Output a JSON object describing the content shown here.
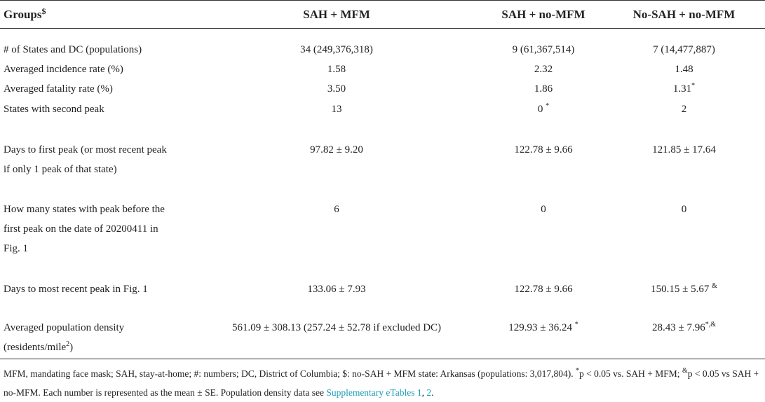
{
  "table": {
    "header": [
      {
        "text": "Groups",
        "sup": "$"
      },
      "SAH + MFM",
      "SAH + no-MFM",
      "No-SAH + no-MFM"
    ],
    "rows": [
      [
        "# of States and DC (populations)",
        "34 (249,376,318)",
        "9 (61,367,514)",
        "7 (14,477,887)"
      ],
      [
        "Averaged incidence rate (%)",
        "1.58",
        "2.32",
        "1.48"
      ],
      [
        "Averaged fatality rate (%)",
        "3.50",
        "1.86",
        {
          "text": "1.31",
          "sup": "*"
        }
      ],
      [
        "States with second peak",
        "13",
        {
          "text": "0 ",
          "sup": "*"
        },
        "2"
      ],
      [
        "Days to first peak (or most recent peak if only 1 peak of that state)",
        "97.82 ± 9.20",
        "122.78 ± 9.66",
        "121.85 ± 17.64"
      ],
      [
        "How many states with peak before the first peak on the date of 20200411 in Fig. 1",
        "6",
        "0",
        "0"
      ],
      [
        "Days to most recent peak in Fig. 1",
        "133.06 ± 7.93",
        "122.78 ± 9.66",
        {
          "text": "150.15 ± 5.67 ",
          "sup": "&"
        }
      ],
      [
        {
          "text": "Averaged population density (residents/mile",
          "sup": "2",
          "tail": ")"
        },
        "561.09 ± 308.13 (257.24 ± 52.78 if excluded DC)",
        {
          "text": "129.93 ± 36.24 ",
          "sup": "*"
        },
        {
          "text": "28.43 ± 7.96",
          "sup": "*,&"
        }
      ]
    ],
    "footnote": [
      {
        "text": "MFM, mandating face mask; SAH, stay-at-home; #: numbers; DC, District of Columbia; $: no-SAH + MFM state: Arkansas (populations: 3,017,804). "
      },
      {
        "sup": "*"
      },
      {
        "text": "p < 0.05 vs. SAH + MFM; "
      },
      {
        "sup": "&"
      },
      {
        "text": "p < 0.05 vs SAH + no-MFM. Each number is represented as the mean ± SE. Population density data see "
      },
      {
        "link": "Supplementary eTables 1"
      },
      {
        "text": ", "
      },
      {
        "link": "2"
      },
      {
        "text": "."
      }
    ]
  }
}
